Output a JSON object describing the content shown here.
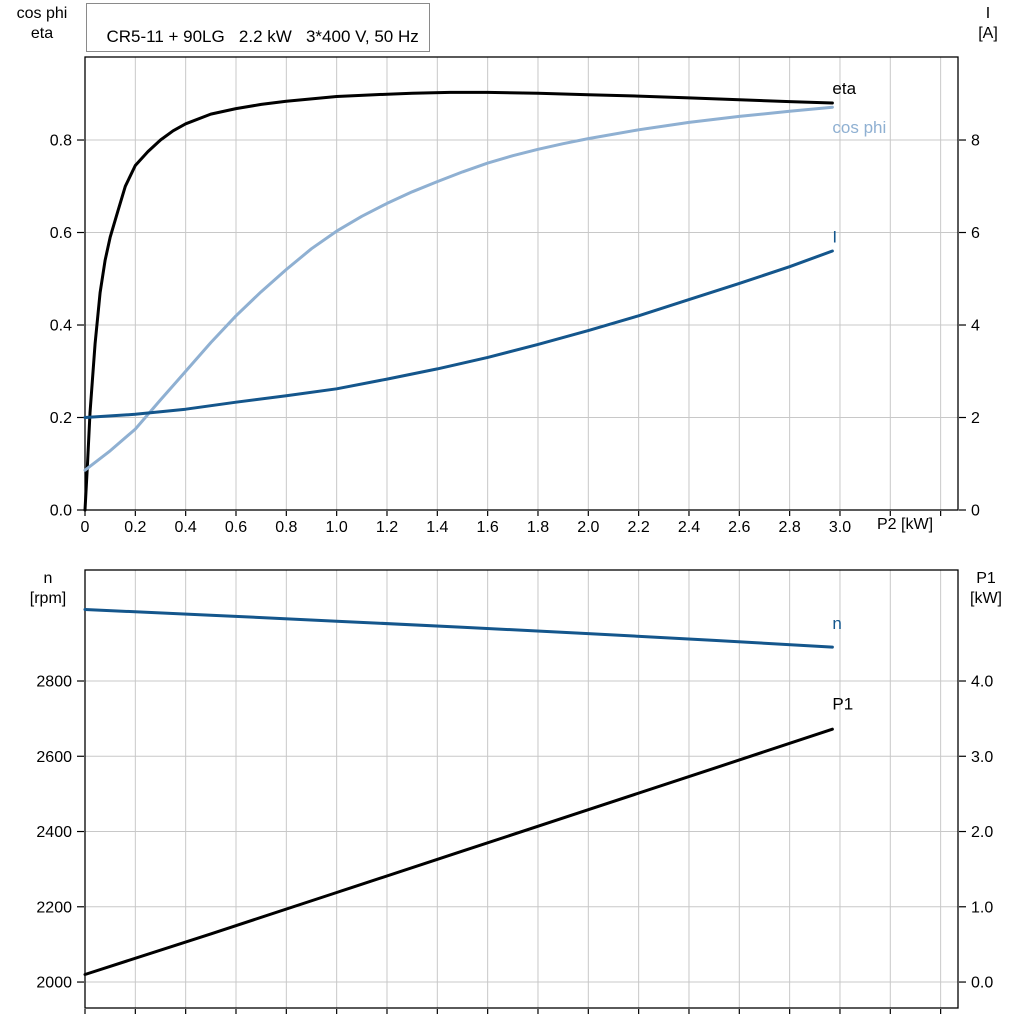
{
  "title_box": "CR5-11 + 90LG   2.2 kW   3*400 V, 50 Hz",
  "colors": {
    "black": "#000000",
    "dark_blue": "#14568c",
    "light_blue": "#8fb0d2",
    "grid": "#c8c8c8",
    "frame": "#000000"
  },
  "chart_data": [
    {
      "type": "line",
      "title": "CR5-11 + 90LG   2.2 kW   3*400 V, 50 Hz",
      "grid": true,
      "x_axis": {
        "label": "P2 [kW]",
        "range": [
          0,
          3.469
        ],
        "tick_values": [
          0,
          0.2,
          0.4,
          0.6,
          0.8,
          1.0,
          1.2,
          1.4,
          1.6,
          1.8,
          2.0,
          2.2,
          2.4,
          2.6,
          2.8,
          3.0,
          3.2,
          3.4
        ],
        "tick_labels": [
          "0",
          "0.2",
          "0.4",
          "0.6",
          "0.8",
          "1.0",
          "1.2",
          "1.4",
          "1.6",
          "1.8",
          "2.0",
          "2.2",
          "2.4",
          "2.6",
          "2.8",
          "3.0",
          "",
          ""
        ]
      },
      "left_axis": {
        "label_lines": [
          "cos phi",
          "eta"
        ],
        "range": [
          0,
          0.9795
        ],
        "tick_values": [
          0,
          0.2,
          0.4,
          0.6,
          0.8
        ],
        "tick_labels": [
          "0.0",
          "0.2",
          "0.4",
          "0.6",
          "0.8"
        ]
      },
      "right_axis": {
        "label_lines": [
          "I",
          "[A]"
        ],
        "range": [
          0,
          9.795
        ],
        "tick_values": [
          0,
          2,
          4,
          6,
          8
        ],
        "tick_labels": [
          "0",
          "2",
          "4",
          "6",
          "8"
        ]
      },
      "series": [
        {
          "name": "eta",
          "axis": "left",
          "color": "#000000",
          "width": 3,
          "label": {
            "text": "eta",
            "at": [
              2.97,
              0.9
            ]
          },
          "points": [
            [
              0,
              0
            ],
            [
              0.01,
              0.1
            ],
            [
              0.02,
              0.21
            ],
            [
              0.04,
              0.36
            ],
            [
              0.06,
              0.47
            ],
            [
              0.08,
              0.54
            ],
            [
              0.1,
              0.59
            ],
            [
              0.13,
              0.645
            ],
            [
              0.16,
              0.7
            ],
            [
              0.2,
              0.745
            ],
            [
              0.25,
              0.775
            ],
            [
              0.3,
              0.8
            ],
            [
              0.35,
              0.82
            ],
            [
              0.4,
              0.835
            ],
            [
              0.5,
              0.856
            ],
            [
              0.6,
              0.868
            ],
            [
              0.7,
              0.877
            ],
            [
              0.8,
              0.884
            ],
            [
              0.9,
              0.889
            ],
            [
              1.0,
              0.894
            ],
            [
              1.15,
              0.898
            ],
            [
              1.3,
              0.901
            ],
            [
              1.45,
              0.903
            ],
            [
              1.6,
              0.903
            ],
            [
              1.8,
              0.901
            ],
            [
              2.0,
              0.898
            ],
            [
              2.2,
              0.895
            ],
            [
              2.4,
              0.891
            ],
            [
              2.6,
              0.887
            ],
            [
              2.8,
              0.883
            ],
            [
              2.97,
              0.88
            ]
          ]
        },
        {
          "name": "cos phi",
          "axis": "left",
          "color": "#8fb0d2",
          "width": 3,
          "label": {
            "text": "cos phi",
            "at": [
              2.97,
              0.815
            ]
          },
          "points": [
            [
              0,
              0.086
            ],
            [
              0.1,
              0.128
            ],
            [
              0.2,
              0.175
            ],
            [
              0.3,
              0.238
            ],
            [
              0.4,
              0.3
            ],
            [
              0.5,
              0.362
            ],
            [
              0.6,
              0.42
            ],
            [
              0.7,
              0.472
            ],
            [
              0.8,
              0.52
            ],
            [
              0.9,
              0.565
            ],
            [
              1.0,
              0.603
            ],
            [
              1.1,
              0.635
            ],
            [
              1.2,
              0.663
            ],
            [
              1.3,
              0.688
            ],
            [
              1.4,
              0.71
            ],
            [
              1.5,
              0.731
            ],
            [
              1.6,
              0.75
            ],
            [
              1.7,
              0.766
            ],
            [
              1.8,
              0.78
            ],
            [
              1.9,
              0.792
            ],
            [
              2.0,
              0.803
            ],
            [
              2.2,
              0.822
            ],
            [
              2.4,
              0.838
            ],
            [
              2.6,
              0.851
            ],
            [
              2.8,
              0.862
            ],
            [
              2.97,
              0.871
            ]
          ]
        },
        {
          "name": "I",
          "axis": "right",
          "color": "#14568c",
          "width": 3,
          "label": {
            "text": "I",
            "at": [
              2.97,
              5.78
            ]
          },
          "points": [
            [
              0,
              2.0
            ],
            [
              0.2,
              2.07
            ],
            [
              0.4,
              2.18
            ],
            [
              0.6,
              2.33
            ],
            [
              0.8,
              2.47
            ],
            [
              1.0,
              2.62
            ],
            [
              1.2,
              2.83
            ],
            [
              1.4,
              3.05
            ],
            [
              1.6,
              3.3
            ],
            [
              1.8,
              3.58
            ],
            [
              2.0,
              3.88
            ],
            [
              2.2,
              4.2
            ],
            [
              2.4,
              4.55
            ],
            [
              2.6,
              4.9
            ],
            [
              2.8,
              5.26
            ],
            [
              2.97,
              5.6
            ]
          ]
        }
      ]
    },
    {
      "type": "line",
      "title": "",
      "grid": true,
      "x_axis": {
        "label": "",
        "range": [
          0,
          3.469
        ],
        "tick_values": [
          0,
          0.2,
          0.4,
          0.6,
          0.8,
          1.0,
          1.2,
          1.4,
          1.6,
          1.8,
          2.0,
          2.2,
          2.4,
          2.6,
          2.8,
          3.0,
          3.2,
          3.4
        ],
        "tick_labels": [
          "",
          "",
          "",
          "",
          "",
          "",
          "",
          "",
          "",
          "",
          "",
          "",
          "",
          "",
          "",
          "",
          "",
          ""
        ]
      },
      "left_axis": {
        "label_lines": [
          "n",
          "[rpm]"
        ],
        "range": [
          1931,
          3095
        ],
        "tick_values": [
          2000,
          2200,
          2400,
          2600,
          2800
        ],
        "tick_labels": [
          "2000",
          "2200",
          "2400",
          "2600",
          "2800"
        ]
      },
      "right_axis": {
        "label_lines": [
          "P1",
          "[kW]"
        ],
        "range": [
          -0.345,
          5.475
        ],
        "tick_values": [
          0,
          1,
          2,
          3,
          4
        ],
        "tick_labels": [
          "0.0",
          "1.0",
          "2.0",
          "3.0",
          "4.0"
        ]
      },
      "series": [
        {
          "name": "n",
          "axis": "left",
          "color": "#14568c",
          "width": 3,
          "label": {
            "text": "n",
            "at": [
              2.97,
              2938
            ]
          },
          "points": [
            [
              0,
              2990
            ],
            [
              0.5,
              2975
            ],
            [
              1.0,
              2959
            ],
            [
              1.5,
              2943
            ],
            [
              2.0,
              2926
            ],
            [
              2.5,
              2908
            ],
            [
              2.97,
              2890
            ]
          ]
        },
        {
          "name": "P1",
          "axis": "right",
          "color": "#000000",
          "width": 3,
          "label": {
            "text": "P1",
            "at": [
              2.97,
              3.62
            ]
          },
          "points": [
            [
              0,
              0.1
            ],
            [
              0.5,
              0.64
            ],
            [
              1.0,
              1.19
            ],
            [
              1.5,
              1.74
            ],
            [
              2.0,
              2.29
            ],
            [
              2.5,
              2.84
            ],
            [
              2.97,
              3.36
            ]
          ]
        }
      ]
    }
  ]
}
